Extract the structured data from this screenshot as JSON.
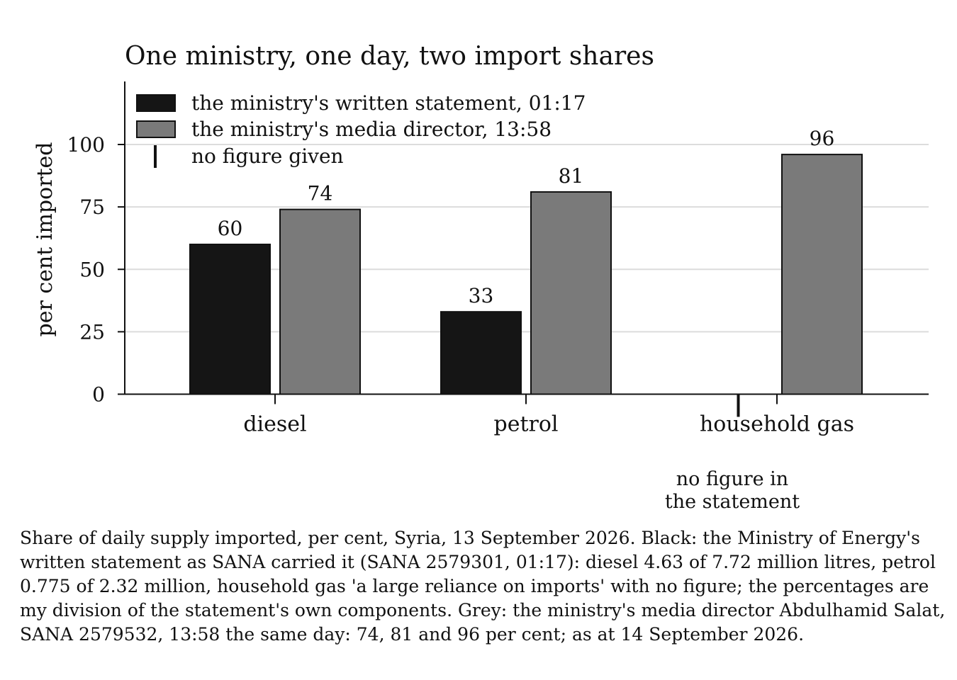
{
  "chart_data": {
    "type": "bar",
    "title": "One ministry, one day, two import shares",
    "ylabel": "per cent imported",
    "xlabel": "",
    "ylim": [
      0,
      125
    ],
    "yticks": [
      0,
      25,
      50,
      75,
      100
    ],
    "grid": true,
    "legend_position": "top-left",
    "categories": [
      "diesel",
      "petrol",
      "household gas"
    ],
    "series": [
      {
        "name": "the ministry's written statement, 01:17",
        "color": "#151515",
        "values": [
          60,
          33,
          null
        ]
      },
      {
        "name": "the ministry's media director, 13:58",
        "color": "#7a7a7a",
        "values": [
          74,
          81,
          96
        ]
      }
    ],
    "legend_extra": "no figure given",
    "annotation": {
      "category_index": 2,
      "lines": [
        "no figure in",
        "the statement"
      ]
    }
  },
  "caption": "Share of daily supply imported, per cent, Syria, 13 September 2026. Black: the Ministry of Energy's written statement as SANA carried it (SANA 2579301, 01:17): diesel 4.63 of 7.72 million litres, petrol 0.775 of 2.32 million, household gas 'a large reliance on imports' with no figure; the percentages are my division of the statement's own components. Grey: the ministry's media director Abdulhamid Salat, SANA 2579532, 13:58 the same day: 74, 81 and 96 per cent; as at 14 September 2026."
}
